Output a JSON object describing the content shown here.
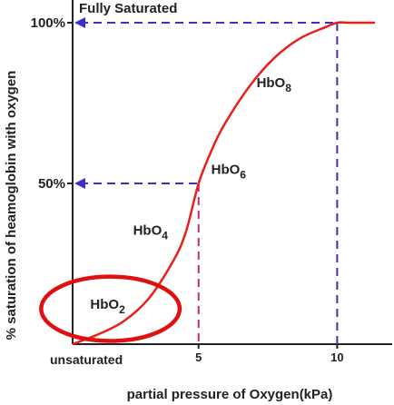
{
  "colors": {
    "curve": "#e8201a",
    "guide_blue": "#3a2fc8",
    "guide_magenta": "#c0287a",
    "axis": "#222222",
    "highlight": "#e01010"
  },
  "chart_data": {
    "type": "line",
    "title": "Fully Saturated",
    "xlabel": "partial pressure of Oxygen(kPa)",
    "ylabel": "% saturation of heamoglobin with oxygen",
    "xlim": [
      0,
      12
    ],
    "ylim": [
      0,
      100
    ],
    "x_ticks": [
      {
        "value": 5,
        "label": "5"
      },
      {
        "value": 10.5,
        "label": "10"
      }
    ],
    "y_ticks": [
      {
        "value": 50,
        "label": "50%"
      },
      {
        "value": 100,
        "label": "100%"
      }
    ],
    "baseline_label": "unsaturated",
    "grid": false,
    "series": [
      {
        "x": [
          0,
          1,
          2,
          3,
          4,
          4.5,
          5,
          5.5,
          6,
          7,
          8,
          9,
          10,
          10.5,
          11,
          12
        ],
        "y": [
          0,
          3,
          7,
          14,
          26,
          35,
          50,
          60,
          68,
          80,
          89,
          95,
          98.5,
          100,
          100,
          100
        ]
      }
    ],
    "reference_lines": [
      {
        "x": 5,
        "y": 50
      },
      {
        "x": 10.5,
        "y": 100
      }
    ],
    "annotations": [
      {
        "text": "HbO",
        "sub": "2",
        "x": 0.7,
        "y": 11
      },
      {
        "text": "HbO",
        "sub": "4",
        "x": 2.4,
        "y": 34
      },
      {
        "text": "HbO",
        "sub": "6",
        "x": 5.5,
        "y": 53
      },
      {
        "text": "HbO",
        "sub": "8",
        "x": 7.3,
        "y": 80
      }
    ],
    "highlight": {
      "cx": 1.5,
      "cy": 11,
      "rx": 2.75,
      "ry": 10
    }
  }
}
